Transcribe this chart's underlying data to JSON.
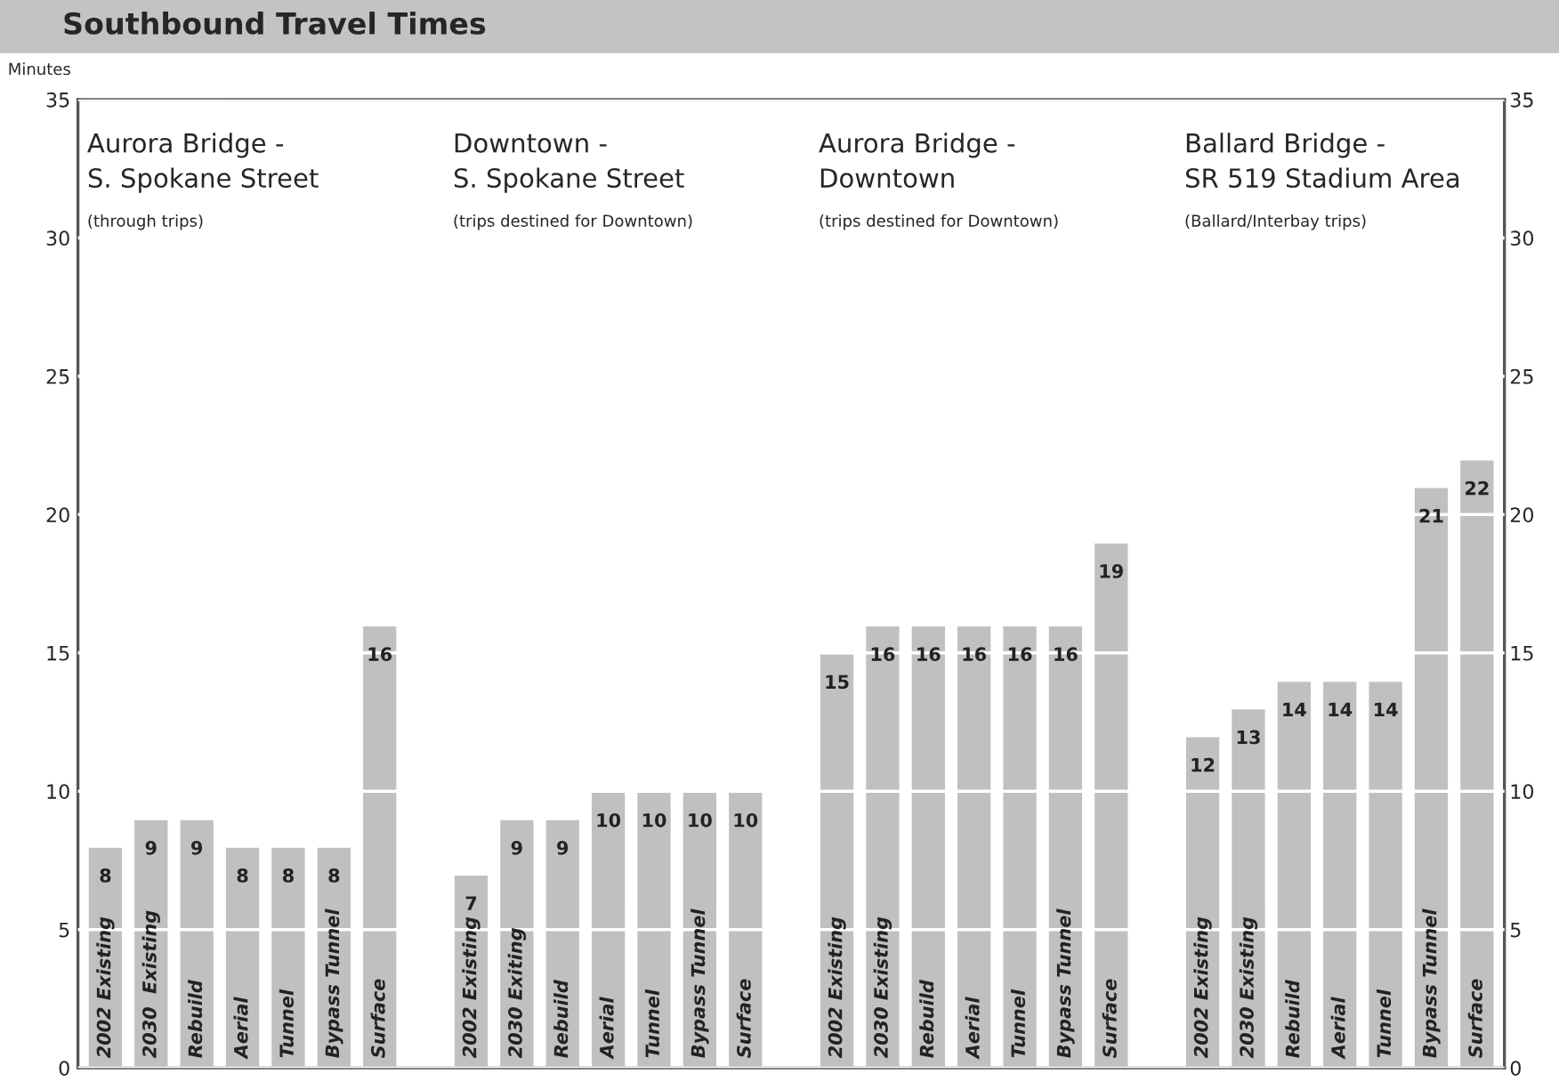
{
  "chart_data": {
    "type": "bar",
    "title": "Southbound Travel Times",
    "ylabel": "Minutes",
    "categories": [
      "2002 Existing",
      "2030  Existing",
      "Rebuild",
      "Aerial",
      "Tunnel",
      "Bypass Tunnel",
      "Surface",
      null,
      "2002 Existing",
      "2030 Exiting",
      "Rebuild",
      "Aerial",
      "Tunnel",
      "Bypass Tunnel",
      "Surface",
      null,
      "2002 Existing",
      "2030 Existing",
      "Rebuild",
      "Aerial",
      "Tunnel",
      "Bypass Tunnel",
      "Surface",
      null,
      "2002 Existing",
      "2030 Existing",
      "Rebuild",
      "Aerial",
      "Tunnel",
      "Bypass Tunnel",
      "Surface"
    ],
    "values": [
      8,
      9,
      9,
      8,
      8,
      8,
      16,
      null,
      7,
      9,
      9,
      10,
      10,
      10,
      10,
      null,
      15,
      16,
      16,
      16,
      16,
      16,
      19,
      null,
      12,
      13,
      14,
      14,
      14,
      21,
      22
    ],
    "color": "#c0c0c0",
    "data_labels": true,
    "ylim": [
      0,
      35
    ],
    "yticks": [
      0,
      5,
      10,
      15,
      20,
      25,
      30,
      35
    ],
    "y2lim": [
      0,
      35
    ],
    "y2ticks": [
      0,
      5,
      10,
      15,
      20,
      25,
      30,
      35
    ],
    "grid": "y",
    "annotations": [
      "Aurora Bridge -\nS. Spokane Street\n(through trips)",
      "Downtown -\nS. Spokane Street\n(trips destined for Downtown)",
      "Aurora Bridge -\nDowntown\n(trips destined for Downtown)",
      "Ballard Bridge -\nSR 519 Stadium Area\n(Ballard/Interbay trips)"
    ]
  }
}
